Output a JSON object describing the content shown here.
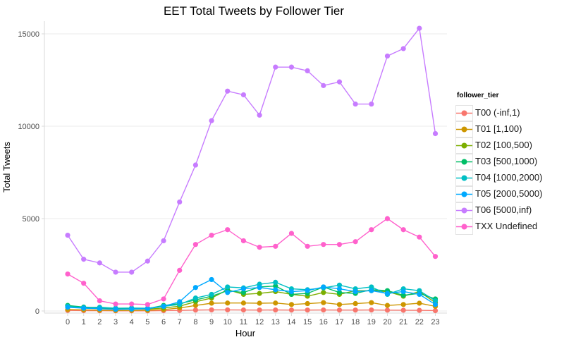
{
  "chart_data": {
    "type": "line",
    "title": "EET Total Tweets by Follower Tier",
    "xlabel": "Hour",
    "ylabel": "Total Tweets",
    "legend_title": "follower_tier",
    "legend_position": "right",
    "grid": true,
    "x": [
      0,
      1,
      2,
      3,
      4,
      5,
      6,
      7,
      8,
      9,
      10,
      11,
      12,
      13,
      14,
      15,
      16,
      17,
      18,
      19,
      20,
      21,
      22,
      23
    ],
    "yticks": [
      0,
      5000,
      10000,
      15000
    ],
    "ylim": [
      0,
      15500
    ],
    "series": [
      {
        "name": "T00 (-inf,1)",
        "color": "#F8766D",
        "values": [
          30,
          20,
          15,
          10,
          10,
          10,
          20,
          30,
          50,
          60,
          60,
          55,
          50,
          55,
          50,
          50,
          55,
          50,
          50,
          55,
          45,
          40,
          35,
          20
        ]
      },
      {
        "name": "T01 [1,100)",
        "color": "#CD9600",
        "values": [
          80,
          60,
          45,
          30,
          30,
          40,
          80,
          160,
          300,
          420,
          430,
          430,
          420,
          430,
          350,
          400,
          450,
          350,
          400,
          450,
          300,
          350,
          420,
          250
        ]
      },
      {
        "name": "T02 [100,500)",
        "color": "#7CAE00",
        "values": [
          280,
          190,
          150,
          100,
          120,
          100,
          160,
          260,
          500,
          700,
          1150,
          900,
          950,
          1050,
          900,
          800,
          1000,
          900,
          1100,
          1100,
          1050,
          800,
          1050,
          450
        ]
      },
      {
        "name": "T03 [500,1000)",
        "color": "#00BE67",
        "values": [
          300,
          210,
          180,
          120,
          150,
          130,
          300,
          400,
          600,
          800,
          1100,
          1000,
          1300,
          1350,
          900,
          950,
          1300,
          1000,
          950,
          1150,
          1100,
          850,
          950,
          650
        ]
      },
      {
        "name": "T04 [1000,2000)",
        "color": "#00BFC4",
        "values": [
          250,
          180,
          200,
          150,
          160,
          150,
          250,
          350,
          700,
          900,
          1300,
          1250,
          1450,
          1550,
          1200,
          1150,
          1250,
          1400,
          1200,
          1300,
          900,
          1200,
          1100,
          550
        ]
      },
      {
        "name": "T05 [2000,5000)",
        "color": "#00A9FF",
        "values": [
          200,
          150,
          120,
          90,
          100,
          120,
          250,
          500,
          1270,
          1700,
          1000,
          1200,
          1270,
          1150,
          1050,
          1100,
          1300,
          1200,
          1050,
          1100,
          950,
          1050,
          900,
          350
        ]
      },
      {
        "name": "T06 [5000,inf)",
        "color": "#C77CFF",
        "values": [
          4100,
          2800,
          2600,
          2100,
          2100,
          2700,
          3800,
          5900,
          7900,
          10300,
          11900,
          11700,
          10600,
          13200,
          13200,
          13000,
          12200,
          12400,
          11200,
          11200,
          13800,
          14200,
          15300,
          9600
        ]
      },
      {
        "name": "TXX Undefined",
        "color": "#FF61CC",
        "values": [
          2000,
          1500,
          550,
          380,
          380,
          350,
          650,
          2200,
          3600,
          4100,
          4400,
          3800,
          3450,
          3500,
          4200,
          3500,
          3600,
          3600,
          3750,
          4400,
          5000,
          4400,
          4000,
          2950
        ]
      }
    ]
  }
}
